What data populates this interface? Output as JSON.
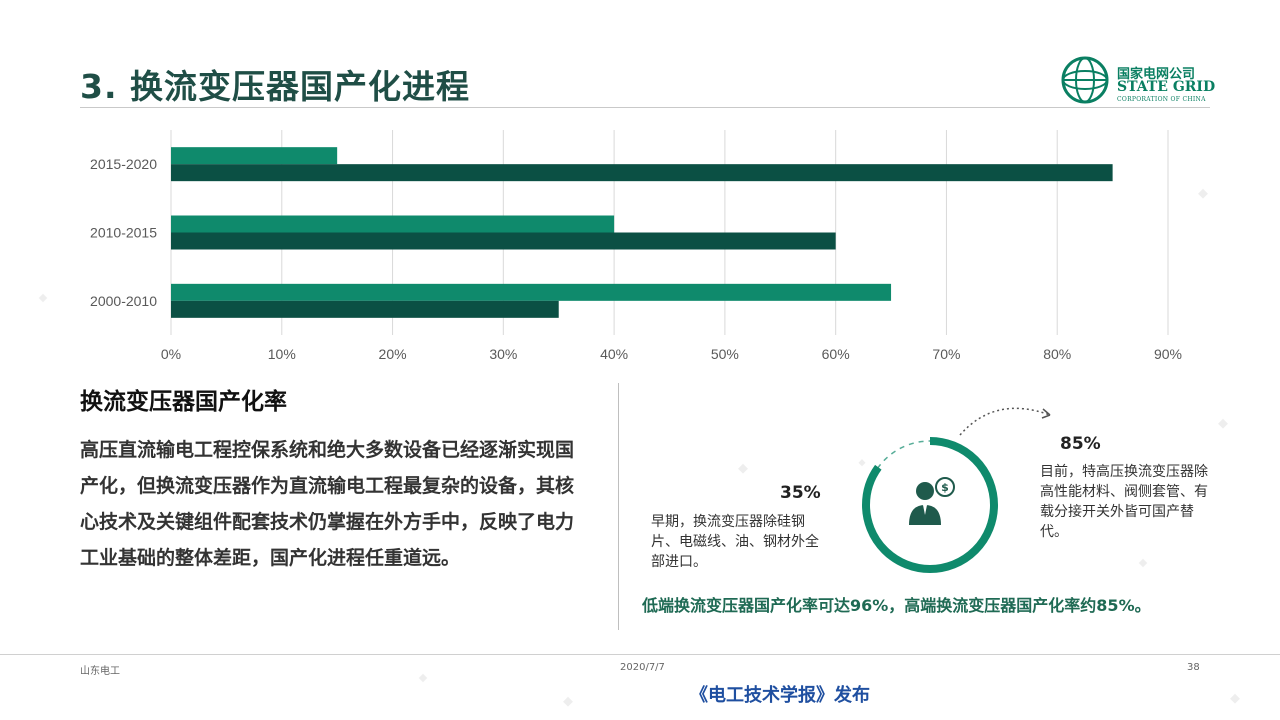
{
  "title": "3. 换流变压器国产化进程",
  "logo": {
    "cn": "国家电网公司",
    "en": "STATE GRID",
    "sub": "CORPORATION OF CHINA"
  },
  "chart_data": {
    "type": "bar",
    "orientation": "horizontal",
    "categories": [
      "2015-2020",
      "2010-2015",
      "2000-2010"
    ],
    "series": [
      {
        "values": [
          15,
          40,
          65
        ],
        "color": "#0f8a6c"
      },
      {
        "values": [
          85,
          60,
          35
        ],
        "color": "#0b5044"
      }
    ],
    "x_ticks": [
      "0%",
      "10%",
      "20%",
      "30%",
      "40%",
      "50%",
      "60%",
      "70%",
      "80%",
      "90%"
    ],
    "xlim": [
      0,
      90
    ],
    "grid": true
  },
  "left": {
    "heading": "换流变压器国产化率",
    "paragraph": "高压直流输电工程控保系统和绝大多数设备已经逐渐实现国产化，但换流变压器作为直流输电工程最复杂的设备，其核心技术及关键组件配套技术仍掌握在外方手中，反映了电力工业基础的整体差距，国产化进程任重道远。"
  },
  "infographic": {
    "pct35": "35%",
    "text35": "早期，换流变压器除硅钢片、电磁线、油、钢材外全部进口。",
    "pct85": "85%",
    "text85": "目前，特高压换流变压器除高性能材料、阀侧套管、有载分接开关外皆可国产替代。",
    "conclusion": "低端换流变压器国产化率可达96%，高端换流变压器国产化率约85%。",
    "ring_fill": 0.85,
    "colors": {
      "ring": "#0f8a6c",
      "icon": "#1f5a4c"
    }
  },
  "footer": {
    "left": "山东电工",
    "date": "2020/7/7",
    "page": "38",
    "publisher": "《电工技术学报》发布"
  }
}
